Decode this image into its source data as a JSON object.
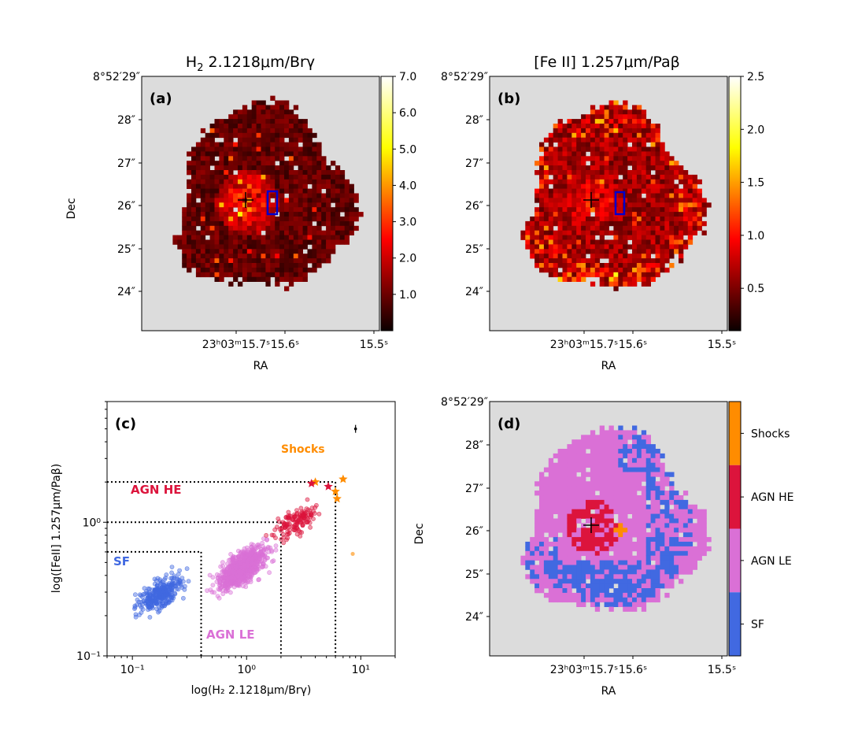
{
  "panels": {
    "a": {
      "tag": "(a)",
      "title_main": "H",
      "title_sub": "2",
      "title_rest": " 2.1218μm/Brγ",
      "colorbar_ticks": [
        "7.0",
        "6.0",
        "5.0",
        "4.0",
        "3.0",
        "2.0",
        "1.0"
      ],
      "colorbar_range": [
        0.0,
        7.0
      ],
      "map_seed": 11,
      "colormap": "hot"
    },
    "b": {
      "tag": "(b)",
      "title_main": "[Fe II] 1.257μm/Paβ",
      "colorbar_ticks": [
        "2.5",
        "2.0",
        "1.5",
        "1.0",
        "0.5"
      ],
      "colorbar_range": [
        0.1,
        2.5
      ],
      "map_seed": 29,
      "colormap": "hot"
    },
    "c": {
      "tag": "(c)",
      "xlabel": "log(H₂ 2.1218μm/Brγ)",
      "ylabel": "log([FeII] 1.257μm/Paβ)",
      "region_labels": {
        "sf": "SF",
        "agn_le": "AGN LE",
        "agn_he": "AGN HE",
        "shocks": "Shocks"
      },
      "colors": {
        "sf": "#4169e1",
        "agn_le": "#da70d6",
        "agn_he": "#dc143c",
        "shocks": "#ff8c00"
      }
    },
    "d": {
      "tag": "(d)",
      "colorbar_labels": [
        "Shocks",
        "AGN HE",
        "AGN LE",
        "SF"
      ],
      "colors": {
        "shocks": "#ff8c00",
        "agn_he": "#dc143c",
        "agn_le": "#da70d6",
        "sf": "#4169e1"
      },
      "map_seed": 47
    }
  },
  "image_axes": {
    "dec_top_label": "8°52′29″",
    "dec_ticks": [
      "28″",
      "27″",
      "26″",
      "25″",
      "24″"
    ],
    "dec_title": "Dec",
    "ra_ticks": [
      "23ʰ03ᵐ15.7ˢ",
      "15.6ˢ",
      "15.5ˢ"
    ],
    "ra_title": "RA"
  },
  "chart_data": {
    "type": "scatter",
    "xscale": "log",
    "yscale": "log",
    "xlim": [
      0.06,
      20
    ],
    "ylim": [
      0.1,
      8
    ],
    "xticks": [
      "10⁻¹",
      "10⁰",
      "10¹"
    ],
    "yticks": [
      "10⁻¹",
      "10⁰"
    ],
    "grid": false,
    "classification_lines": {
      "horizontal_y": [
        0.6,
        1.0,
        2.0
      ],
      "vertical_x": [
        0.4,
        2.0,
        6.0
      ]
    },
    "error_bar_point": {
      "x": 9.0,
      "y": 5.0
    },
    "series": [
      {
        "name": "SF",
        "n_points": 300,
        "x_range": [
          0.08,
          0.4
        ],
        "y_range": [
          0.14,
          0.62
        ]
      },
      {
        "name": "AGN LE",
        "n_points": 800,
        "x_range": [
          0.4,
          2.0
        ],
        "y_range": [
          0.2,
          1.0
        ]
      },
      {
        "name": "AGN HE",
        "n_points": 140,
        "x_range": [
          1.2,
          6.0
        ],
        "y_range": [
          0.5,
          2.0
        ]
      },
      {
        "name": "Shocks",
        "points": [
          [
            4.0,
            2.0
          ],
          [
            6.0,
            1.7
          ],
          [
            7.0,
            2.1
          ],
          [
            6.2,
            1.5
          ],
          [
            8.5,
            0.58
          ],
          [
            3.7,
            1.95
          ],
          [
            5.2,
            1.85
          ]
        ]
      }
    ]
  }
}
